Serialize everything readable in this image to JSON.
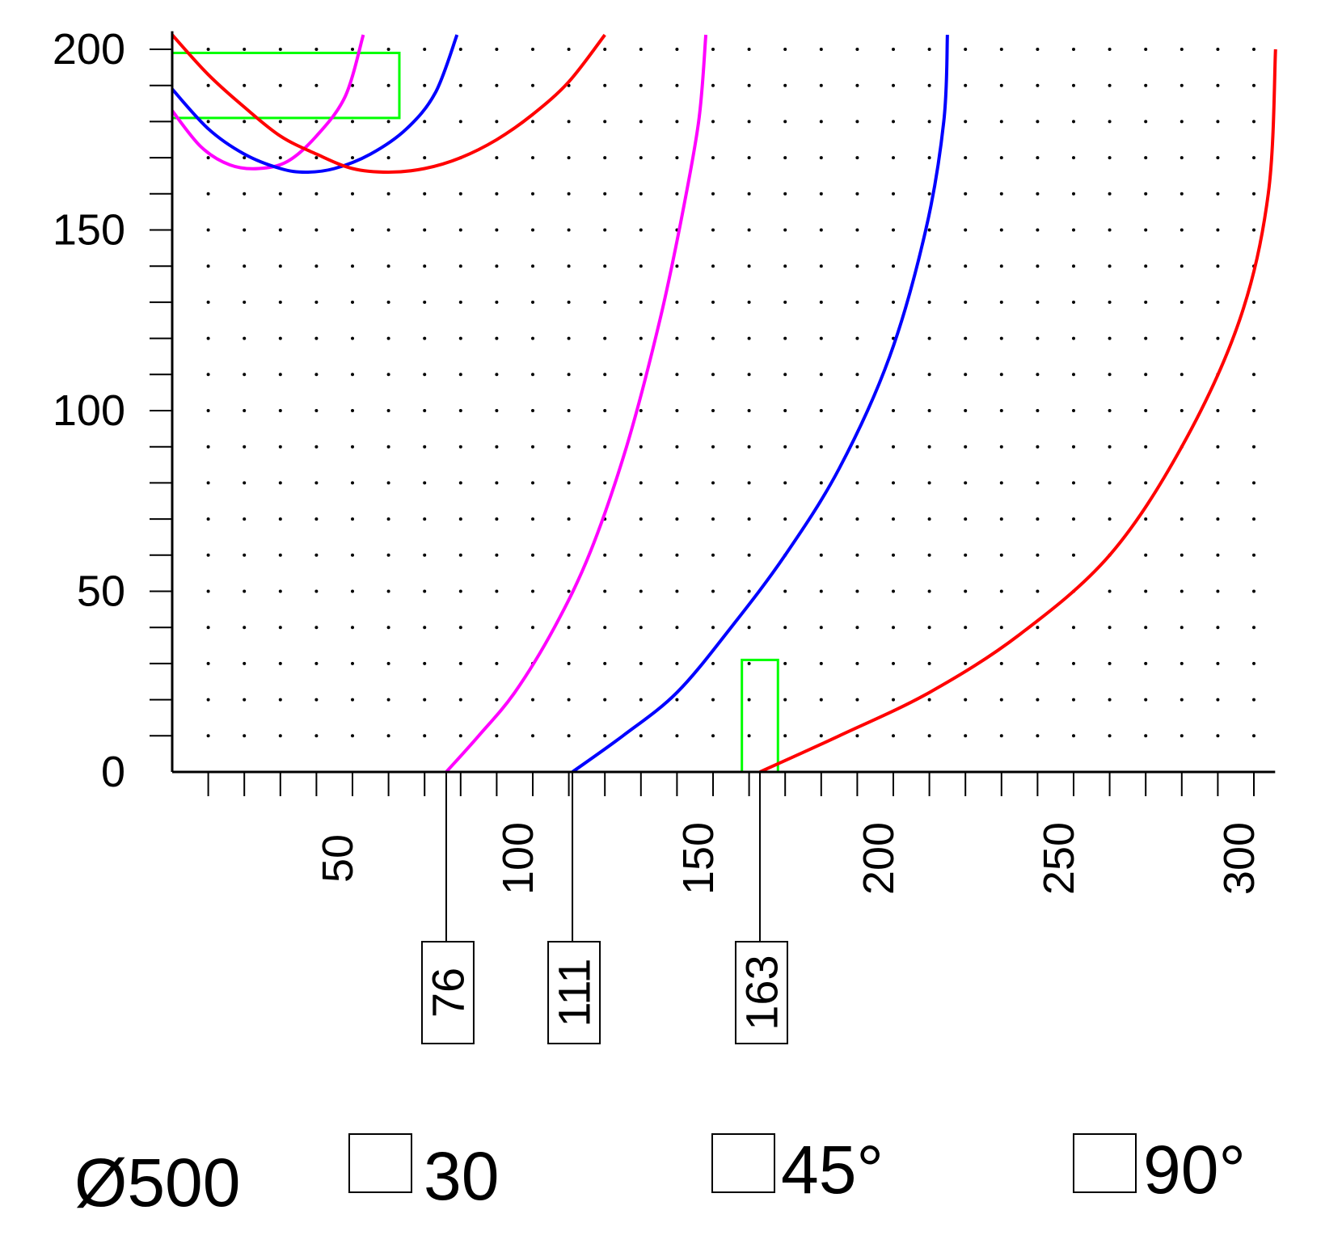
{
  "chart_data": {
    "type": "line",
    "xlim": [
      0,
      305
    ],
    "ylim": [
      0,
      205
    ],
    "x_ticks": [
      50,
      100,
      150,
      200,
      250,
      300
    ],
    "y_ticks": [
      0,
      50,
      100,
      150,
      200
    ],
    "x_minor_step": 10,
    "y_minor_step": 10,
    "grid": "dots",
    "series": [
      {
        "color": "#ff00ff",
        "points": [
          [
            76,
            0
          ],
          [
            85,
            10
          ],
          [
            95,
            22
          ],
          [
            106,
            40
          ],
          [
            116,
            61
          ],
          [
            126,
            90
          ],
          [
            135,
            124
          ],
          [
            141,
            152
          ],
          [
            146,
            180
          ],
          [
            148,
            204
          ]
        ]
      },
      {
        "color": "#0000ff",
        "points": [
          [
            111,
            0
          ],
          [
            125,
            10
          ],
          [
            140,
            22
          ],
          [
            155,
            40
          ],
          [
            170,
            60
          ],
          [
            185,
            84
          ],
          [
            199,
            115
          ],
          [
            209,
            150
          ],
          [
            214,
            180
          ],
          [
            215,
            204
          ]
        ]
      },
      {
        "color": "#ff0000",
        "points": [
          [
            163,
            0
          ],
          [
            185,
            10
          ],
          [
            210,
            22
          ],
          [
            235,
            38
          ],
          [
            260,
            60
          ],
          [
            280,
            90
          ],
          [
            296,
            125
          ],
          [
            304,
            160
          ],
          [
            306,
            200
          ]
        ]
      },
      {
        "color": "#ff00ff",
        "points": [
          [
            0,
            183
          ],
          [
            8,
            173
          ],
          [
            16,
            168
          ],
          [
            24,
            167
          ],
          [
            32,
            169
          ],
          [
            40,
            176
          ],
          [
            48,
            187
          ],
          [
            53,
            204
          ]
        ]
      },
      {
        "color": "#0000ff",
        "points": [
          [
            0,
            189
          ],
          [
            10,
            178
          ],
          [
            20,
            171
          ],
          [
            30,
            167
          ],
          [
            37,
            166
          ],
          [
            45,
            167
          ],
          [
            55,
            171
          ],
          [
            65,
            178
          ],
          [
            73,
            188
          ],
          [
            79,
            204
          ]
        ]
      },
      {
        "color": "#ff0000",
        "points": [
          [
            0,
            204
          ],
          [
            10,
            193
          ],
          [
            20,
            184
          ],
          [
            30,
            176
          ],
          [
            40,
            171
          ],
          [
            50,
            167
          ],
          [
            60,
            166
          ],
          [
            70,
            167
          ],
          [
            80,
            170
          ],
          [
            90,
            175
          ],
          [
            100,
            182
          ],
          [
            110,
            191
          ],
          [
            120,
            204
          ]
        ]
      }
    ],
    "regions": [
      {
        "color": "#00ff00",
        "x": [
          0,
          63
        ],
        "y": [
          181,
          199
        ]
      },
      {
        "color": "#00ff00",
        "x": [
          158,
          168
        ],
        "y": [
          0,
          31
        ]
      }
    ],
    "markers": [
      {
        "x": 76,
        "label": "76"
      },
      {
        "x": 111,
        "label": "111"
      },
      {
        "x": 163,
        "label": "163"
      }
    ]
  },
  "legend": {
    "diameter": "Ø500",
    "items": [
      {
        "label": "30"
      },
      {
        "label": "45°"
      },
      {
        "label": "90°"
      }
    ]
  }
}
